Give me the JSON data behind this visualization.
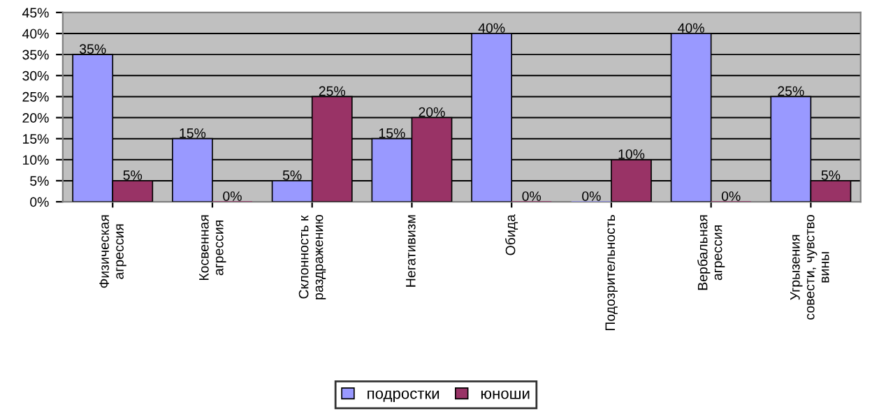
{
  "chart_data": {
    "type": "bar",
    "categories": [
      "Физическая агрессия",
      "Косвенная агрессия",
      "Склонность к раздражению",
      "Негативизм",
      "Обида",
      "Подозрительность",
      "Вербальная агрессия",
      "Угрызения совести, чувство вины"
    ],
    "series": [
      {
        "name": "подростки",
        "color": "#9999ff",
        "values": [
          35,
          15,
          5,
          15,
          40,
          0,
          40,
          25
        ],
        "value_labels": [
          "35%",
          "15%",
          "5%",
          "15%",
          "40%",
          "0%",
          "40%",
          "25%"
        ]
      },
      {
        "name": "юноши",
        "color": "#993366",
        "values": [
          5,
          0,
          25,
          20,
          0,
          10,
          0,
          5
        ],
        "value_labels": [
          "5%",
          "0%",
          "25%",
          "20%",
          "0%",
          "10%",
          "0%",
          "5%"
        ]
      }
    ],
    "ylim": [
      0,
      45
    ],
    "yticks": [
      {
        "value": 0,
        "label": "0%"
      },
      {
        "value": 5,
        "label": "5%"
      },
      {
        "value": 10,
        "label": "10%"
      },
      {
        "value": 15,
        "label": "15%"
      },
      {
        "value": 20,
        "label": "20%"
      },
      {
        "value": 25,
        "label": "25%"
      },
      {
        "value": 30,
        "label": "30%"
      },
      {
        "value": 35,
        "label": "35%"
      },
      {
        "value": 40,
        "label": "40%"
      },
      {
        "value": 45,
        "label": "45%"
      }
    ],
    "grid": "y",
    "legend": "bottom"
  }
}
